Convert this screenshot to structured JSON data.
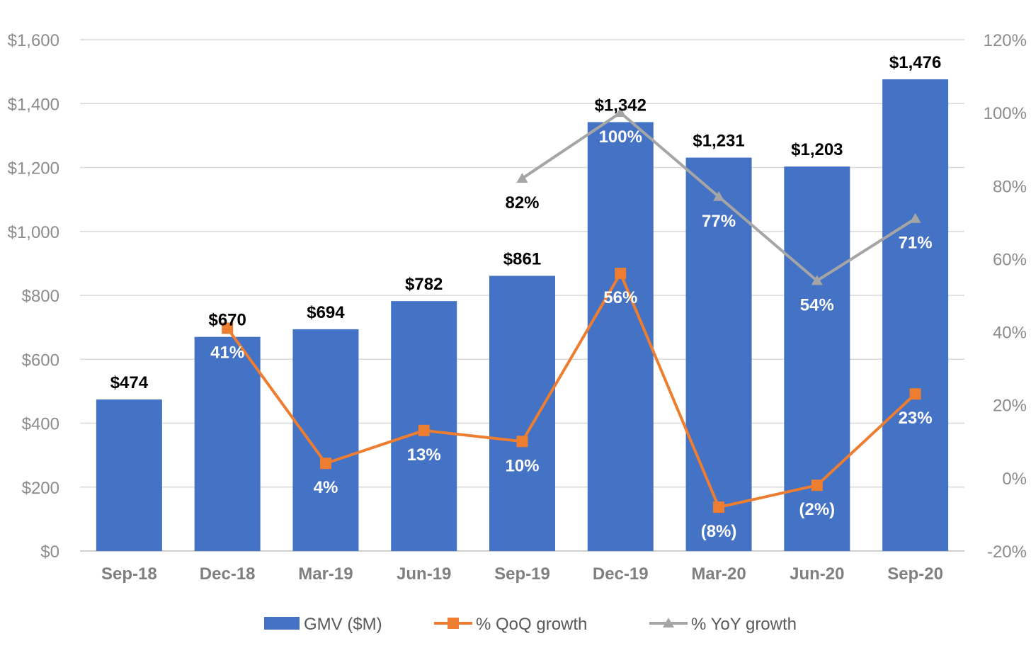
{
  "chart_data": {
    "type": "bar",
    "categories": [
      "Sep-18",
      "Dec-18",
      "Mar-19",
      "Jun-19",
      "Sep-19",
      "Dec-19",
      "Mar-20",
      "Jun-20",
      "Sep-20"
    ],
    "series": [
      {
        "name": "GMV ($M)",
        "type": "bar",
        "axis": "left",
        "values": [
          474,
          670,
          694,
          782,
          861,
          1342,
          1231,
          1203,
          1476
        ],
        "labels": [
          "$474",
          "$670",
          "$694",
          "$782",
          "$861",
          "$1,342",
          "$1,231",
          "$1,203",
          "$1,476"
        ],
        "color": "#4472c4"
      },
      {
        "name": "% QoQ growth",
        "type": "line",
        "axis": "right",
        "marker": "square",
        "values": [
          null,
          41,
          4,
          13,
          10,
          56,
          -8,
          -2,
          23
        ],
        "labels": [
          null,
          "41%",
          "4%",
          "13%",
          "10%",
          "56%",
          "(8%)",
          "(2%)",
          "23%"
        ],
        "color": "#ed7d31"
      },
      {
        "name": "% YoY growth",
        "type": "line",
        "axis": "right",
        "marker": "triangle",
        "values": [
          null,
          null,
          null,
          null,
          82,
          100,
          77,
          54,
          71
        ],
        "labels": [
          null,
          null,
          null,
          null,
          "82%",
          "100%",
          "77%",
          "54%",
          "71%"
        ],
        "color": "#a5a5a5"
      }
    ],
    "yticks_left": [
      "$0",
      "$200",
      "$400",
      "$600",
      "$800",
      "$1,000",
      "$1,200",
      "$1,400",
      "$1,600"
    ],
    "yticks_right": [
      "-20%",
      "0%",
      "20%",
      "40%",
      "60%",
      "80%",
      "100%",
      "120%"
    ],
    "ylim_left": [
      0,
      1600
    ],
    "ylim_right": [
      -20,
      120
    ],
    "grid": true,
    "legend_position": "bottom"
  }
}
